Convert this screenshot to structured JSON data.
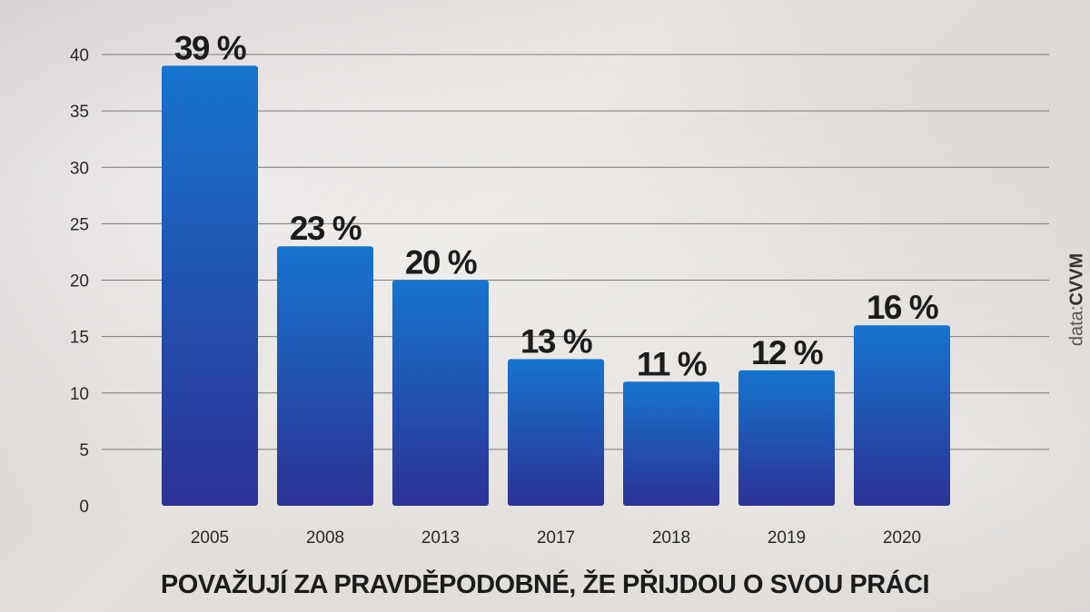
{
  "chart_data": {
    "type": "bar",
    "categories": [
      "2005",
      "2008",
      "2013",
      "2017",
      "2018",
      "2019",
      "2020"
    ],
    "values": [
      39,
      23,
      20,
      13,
      11,
      12,
      16
    ],
    "data_labels": [
      "39 %",
      "23 %",
      "20 %",
      "13 %",
      "11 %",
      "12 %",
      "16 %"
    ],
    "yticks": [
      "0",
      "5",
      "10",
      "15",
      "20",
      "25",
      "30",
      "35",
      "40"
    ],
    "ylim": [
      0,
      40
    ],
    "xlabel": "POVAŽUJÍ ZA PRAVDĚPODOBNÉ, ŽE PŘIJDOU O SVOU PRÁCI",
    "grid": true,
    "colors": {
      "bar_top": "#1674cf",
      "bar_bottom": "#2c3295",
      "grid": "#7d7a78"
    }
  },
  "source": {
    "prefix": "data:",
    "name": "CVVM"
  }
}
